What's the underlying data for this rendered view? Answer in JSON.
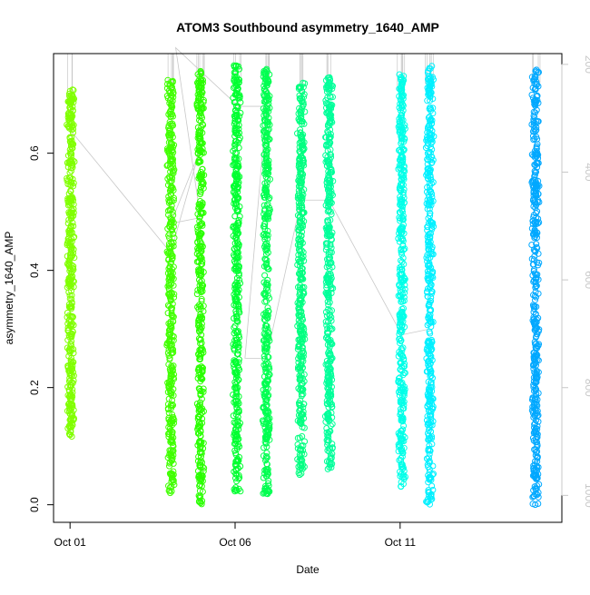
{
  "chart_data": {
    "type": "scatter",
    "title": "ATOM3 Southbound asymmetry_1640_AMP",
    "xlabel": "Date",
    "ylabel": "asymmetry_1640_AMP",
    "x_ticks": [
      {
        "value": 1,
        "label": "Oct 01"
      },
      {
        "value": 6,
        "label": "Oct 06"
      },
      {
        "value": 11,
        "label": "Oct 11"
      }
    ],
    "xlim": [
      0.5,
      15.9
    ],
    "ylim": [
      -0.03,
      0.77
    ],
    "y_ticks": [
      0.0,
      0.2,
      0.4,
      0.6
    ],
    "y_tick_labels": [
      "0.0",
      "0.2",
      "0.4",
      "0.6"
    ],
    "right_axis": {
      "inverted": true,
      "lim": [
        180,
        1050
      ],
      "ticks": [
        200,
        400,
        600,
        800,
        1000
      ],
      "tick_labels": [
        "200",
        "400",
        "600",
        "800",
        "1000"
      ],
      "color": "#c8c8c8"
    },
    "marker": "open-circle",
    "grid": false,
    "series": [
      {
        "x": 1.02,
        "ymin": 0.115,
        "ymax": 0.71,
        "color": "#80ff00"
      },
      {
        "x": 4.05,
        "ymin": 0.02,
        "ymax": 0.725,
        "color": "#40ff00"
      },
      {
        "x": 4.95,
        "ymin": 0.0,
        "ymax": 0.74,
        "color": "#2aff00"
      },
      {
        "x": 6.05,
        "ymin": 0.02,
        "ymax": 0.75,
        "color": "#00ff30"
      },
      {
        "x": 6.95,
        "ymin": 0.015,
        "ymax": 0.745,
        "color": "#00ff50"
      },
      {
        "x": 8.0,
        "ymin": 0.045,
        "ymax": 0.72,
        "color": "#00ff80"
      },
      {
        "x": 8.85,
        "ymin": 0.06,
        "ymax": 0.73,
        "color": "#00ff9a"
      },
      {
        "x": 11.05,
        "ymin": 0.03,
        "ymax": 0.735,
        "color": "#00ffe8"
      },
      {
        "x": 11.9,
        "ymin": 0.0,
        "ymax": 0.75,
        "color": "#00f0ff"
      },
      {
        "x": 15.1,
        "ymin": 0.0,
        "ymax": 0.745,
        "color": "#00a8ff"
      }
    ],
    "connector_line": {
      "color": "#c8c8c8",
      "points": [
        [
          1.0,
          0.64
        ],
        [
          4.05,
          0.43
        ],
        [
          4.9,
          0.6
        ],
        [
          4.05,
          0.48
        ],
        [
          4.95,
          0.49
        ],
        [
          4.2,
          0.78
        ],
        [
          6.1,
          0.68
        ],
        [
          6.95,
          0.68
        ],
        [
          6.3,
          0.25
        ],
        [
          6.95,
          0.25
        ],
        [
          8.0,
          0.52
        ],
        [
          8.85,
          0.52
        ],
        [
          11.05,
          0.29
        ],
        [
          11.9,
          0.3
        ]
      ]
    }
  }
}
